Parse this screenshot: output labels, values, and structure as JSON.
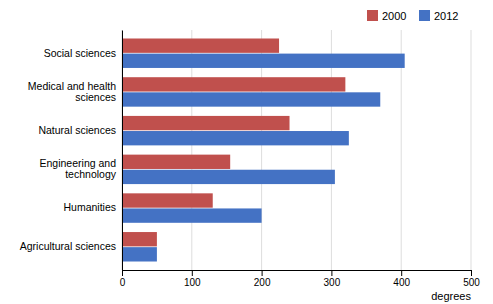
{
  "chart_data": {
    "type": "bar",
    "orientation": "horizontal",
    "categories": [
      "Social sciences",
      "Medical and health\nsciences",
      "Natural sciences",
      "Engineering and\ntechnology",
      "Humanities",
      "Agricultural sciences"
    ],
    "series": [
      {
        "name": "2000",
        "color": "#C0504D",
        "values": [
          225,
          320,
          240,
          155,
          130,
          50
        ]
      },
      {
        "name": "2012",
        "color": "#4472C4",
        "values": [
          405,
          370,
          325,
          305,
          200,
          50
        ]
      }
    ],
    "xlabel": "degrees",
    "xlim": [
      0,
      500
    ],
    "xticks": [
      0,
      100,
      200,
      300,
      400,
      500
    ],
    "grid": true,
    "legend": "top-right"
  }
}
